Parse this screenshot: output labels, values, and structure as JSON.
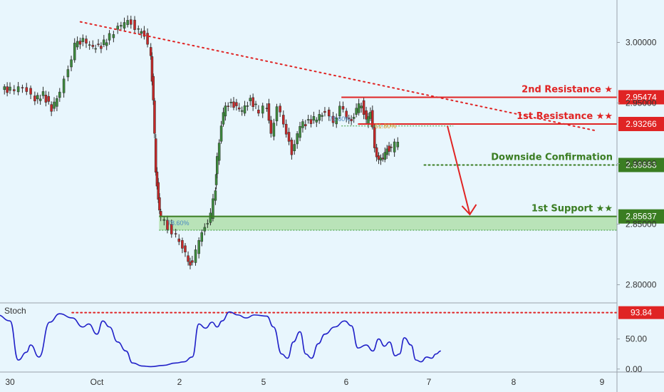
{
  "chart_data": [
    {
      "type": "candlestick",
      "title": "",
      "ylim": [
        2.785,
        3.035
      ],
      "y_ticks": [
        "3.00000",
        "2.95000",
        "2.90000",
        "2.85000",
        "2.80000"
      ],
      "x_ticks": [
        "30",
        "Oct",
        "2",
        "5",
        "6",
        "7",
        "8",
        "9"
      ],
      "levels": [
        {
          "name": "2nd Resistance ★",
          "value": "2.95474",
          "color": "#e02424"
        },
        {
          "name": "1st Resistance ★★",
          "value": "2.93266",
          "color": "#e02424"
        },
        {
          "name": "Downside Confirmation",
          "value": "2.89883",
          "color": "#3a7d22"
        },
        {
          "name": "1st Support ★★",
          "value": "2.85637",
          "color": "#3a7d22"
        }
      ],
      "fib_labels": [
        "78.60%",
        "61.80%",
        "78.60%"
      ],
      "support_zone": [
        2.845,
        2.856
      ],
      "trendline": {
        "from": [
          0.85,
          3.017
        ],
        "to": [
          7.08,
          2.927
        ]
      },
      "series": [
        {
          "values": [
            {
              "x": 0.0,
              "y": 2.961
            },
            {
              "x": 0.15,
              "y": 2.963
            },
            {
              "x": 0.3,
              "y": 2.953
            },
            {
              "x": 0.4,
              "y": 2.957
            },
            {
              "x": 0.5,
              "y": 2.945
            },
            {
              "x": 0.6,
              "y": 2.959
            },
            {
              "x": 0.7,
              "y": 2.979
            },
            {
              "x": 0.78,
              "y": 2.997
            },
            {
              "x": 0.88,
              "y": 3.002
            },
            {
              "x": 1.0,
              "y": 2.996
            },
            {
              "x": 1.1,
              "y": 2.997
            },
            {
              "x": 1.2,
              "y": 3.005
            },
            {
              "x": 1.3,
              "y": 3.012
            },
            {
              "x": 1.38,
              "y": 3.016
            },
            {
              "x": 1.46,
              "y": 3.017
            },
            {
              "x": 1.55,
              "y": 3.009
            },
            {
              "x": 1.62,
              "y": 3.006
            },
            {
              "x": 1.7,
              "y": 2.99
            },
            {
              "x": 1.73,
              "y": 2.95
            },
            {
              "x": 1.76,
              "y": 2.895
            },
            {
              "x": 1.79,
              "y": 2.87
            },
            {
              "x": 1.82,
              "y": 2.855
            },
            {
              "x": 1.9,
              "y": 2.848
            },
            {
              "x": 2.0,
              "y": 2.84
            },
            {
              "x": 2.08,
              "y": 2.83
            },
            {
              "x": 2.15,
              "y": 2.821
            },
            {
              "x": 2.2,
              "y": 2.816
            },
            {
              "x": 2.28,
              "y": 2.838
            },
            {
              "x": 2.35,
              "y": 2.848
            },
            {
              "x": 2.42,
              "y": 2.857
            },
            {
              "x": 2.48,
              "y": 2.88
            },
            {
              "x": 2.5,
              "y": 2.905
            },
            {
              "x": 2.55,
              "y": 2.93
            },
            {
              "x": 2.6,
              "y": 2.95
            },
            {
              "x": 2.7,
              "y": 2.948
            },
            {
              "x": 2.8,
              "y": 2.944
            },
            {
              "x": 2.9,
              "y": 2.952
            },
            {
              "x": 3.0,
              "y": 2.944
            },
            {
              "x": 3.1,
              "y": 2.947
            },
            {
              "x": 3.15,
              "y": 2.925
            },
            {
              "x": 3.22,
              "y": 2.945
            },
            {
              "x": 3.3,
              "y": 2.935
            },
            {
              "x": 3.4,
              "y": 2.908
            },
            {
              "x": 3.5,
              "y": 2.932
            },
            {
              "x": 3.6,
              "y": 2.934
            },
            {
              "x": 3.7,
              "y": 2.938
            },
            {
              "x": 3.8,
              "y": 2.942
            },
            {
              "x": 3.9,
              "y": 2.935
            },
            {
              "x": 3.98,
              "y": 2.945
            },
            {
              "x": 4.06,
              "y": 2.94
            },
            {
              "x": 4.12,
              "y": 2.935
            },
            {
              "x": 4.18,
              "y": 2.944
            },
            {
              "x": 4.24,
              "y": 2.95
            },
            {
              "x": 4.3,
              "y": 2.935
            },
            {
              "x": 4.35,
              "y": 2.942
            },
            {
              "x": 4.4,
              "y": 2.915
            },
            {
              "x": 4.45,
              "y": 2.901
            },
            {
              "x": 4.5,
              "y": 2.905
            },
            {
              "x": 4.55,
              "y": 2.913
            },
            {
              "x": 4.6,
              "y": 2.911
            },
            {
              "x": 4.68,
              "y": 2.92
            }
          ]
        }
      ]
    },
    {
      "type": "line",
      "title": "Stoch",
      "ylim": [
        -5,
        110
      ],
      "y_ticks": [
        "50.00",
        "0.00"
      ],
      "levels": [
        {
          "name": "",
          "value": "93.84",
          "color": "#e02424"
        }
      ],
      "series": [
        {
          "name": "",
          "color": "#2020c8",
          "values": [
            {
              "x": -0.15,
              "y": 90
            },
            {
              "x": 0.0,
              "y": 80
            },
            {
              "x": 0.1,
              "y": 15
            },
            {
              "x": 0.2,
              "y": 28
            },
            {
              "x": 0.25,
              "y": 40
            },
            {
              "x": 0.35,
              "y": 20
            },
            {
              "x": 0.48,
              "y": 78
            },
            {
              "x": 0.6,
              "y": 92
            },
            {
              "x": 0.75,
              "y": 85
            },
            {
              "x": 0.88,
              "y": 70
            },
            {
              "x": 0.95,
              "y": 75
            },
            {
              "x": 1.05,
              "y": 58
            },
            {
              "x": 1.12,
              "y": 80
            },
            {
              "x": 1.2,
              "y": 70
            },
            {
              "x": 1.3,
              "y": 45
            },
            {
              "x": 1.4,
              "y": 30
            },
            {
              "x": 1.48,
              "y": 10
            },
            {
              "x": 1.6,
              "y": 5
            },
            {
              "x": 1.7,
              "y": 4
            },
            {
              "x": 1.85,
              "y": 6
            },
            {
              "x": 2.0,
              "y": 10
            },
            {
              "x": 2.1,
              "y": 12
            },
            {
              "x": 2.2,
              "y": 20
            },
            {
              "x": 2.28,
              "y": 75
            },
            {
              "x": 2.36,
              "y": 68
            },
            {
              "x": 2.44,
              "y": 78
            },
            {
              "x": 2.5,
              "y": 70
            },
            {
              "x": 2.56,
              "y": 80
            },
            {
              "x": 2.65,
              "y": 95
            },
            {
              "x": 2.75,
              "y": 90
            },
            {
              "x": 2.85,
              "y": 85
            },
            {
              "x": 2.95,
              "y": 90
            },
            {
              "x": 3.1,
              "y": 88
            },
            {
              "x": 3.18,
              "y": 70
            },
            {
              "x": 3.28,
              "y": 25
            },
            {
              "x": 3.35,
              "y": 18
            },
            {
              "x": 3.42,
              "y": 45
            },
            {
              "x": 3.5,
              "y": 62
            },
            {
              "x": 3.57,
              "y": 25
            },
            {
              "x": 3.64,
              "y": 18
            },
            {
              "x": 3.72,
              "y": 42
            },
            {
              "x": 3.8,
              "y": 58
            },
            {
              "x": 3.92,
              "y": 70
            },
            {
              "x": 4.04,
              "y": 80
            },
            {
              "x": 4.12,
              "y": 72
            },
            {
              "x": 4.2,
              "y": 35
            },
            {
              "x": 4.3,
              "y": 40
            },
            {
              "x": 4.38,
              "y": 30
            },
            {
              "x": 4.45,
              "y": 50
            },
            {
              "x": 4.52,
              "y": 38
            },
            {
              "x": 4.58,
              "y": 45
            },
            {
              "x": 4.65,
              "y": 22
            },
            {
              "x": 4.7,
              "y": 25
            },
            {
              "x": 4.76,
              "y": 52
            },
            {
              "x": 4.84,
              "y": 40
            },
            {
              "x": 4.9,
              "y": 15
            },
            {
              "x": 4.96,
              "y": 12
            },
            {
              "x": 5.03,
              "y": 20
            },
            {
              "x": 5.09,
              "y": 18
            },
            {
              "x": 5.14,
              "y": 25
            },
            {
              "x": 5.2,
              "y": 30
            }
          ]
        }
      ]
    }
  ]
}
